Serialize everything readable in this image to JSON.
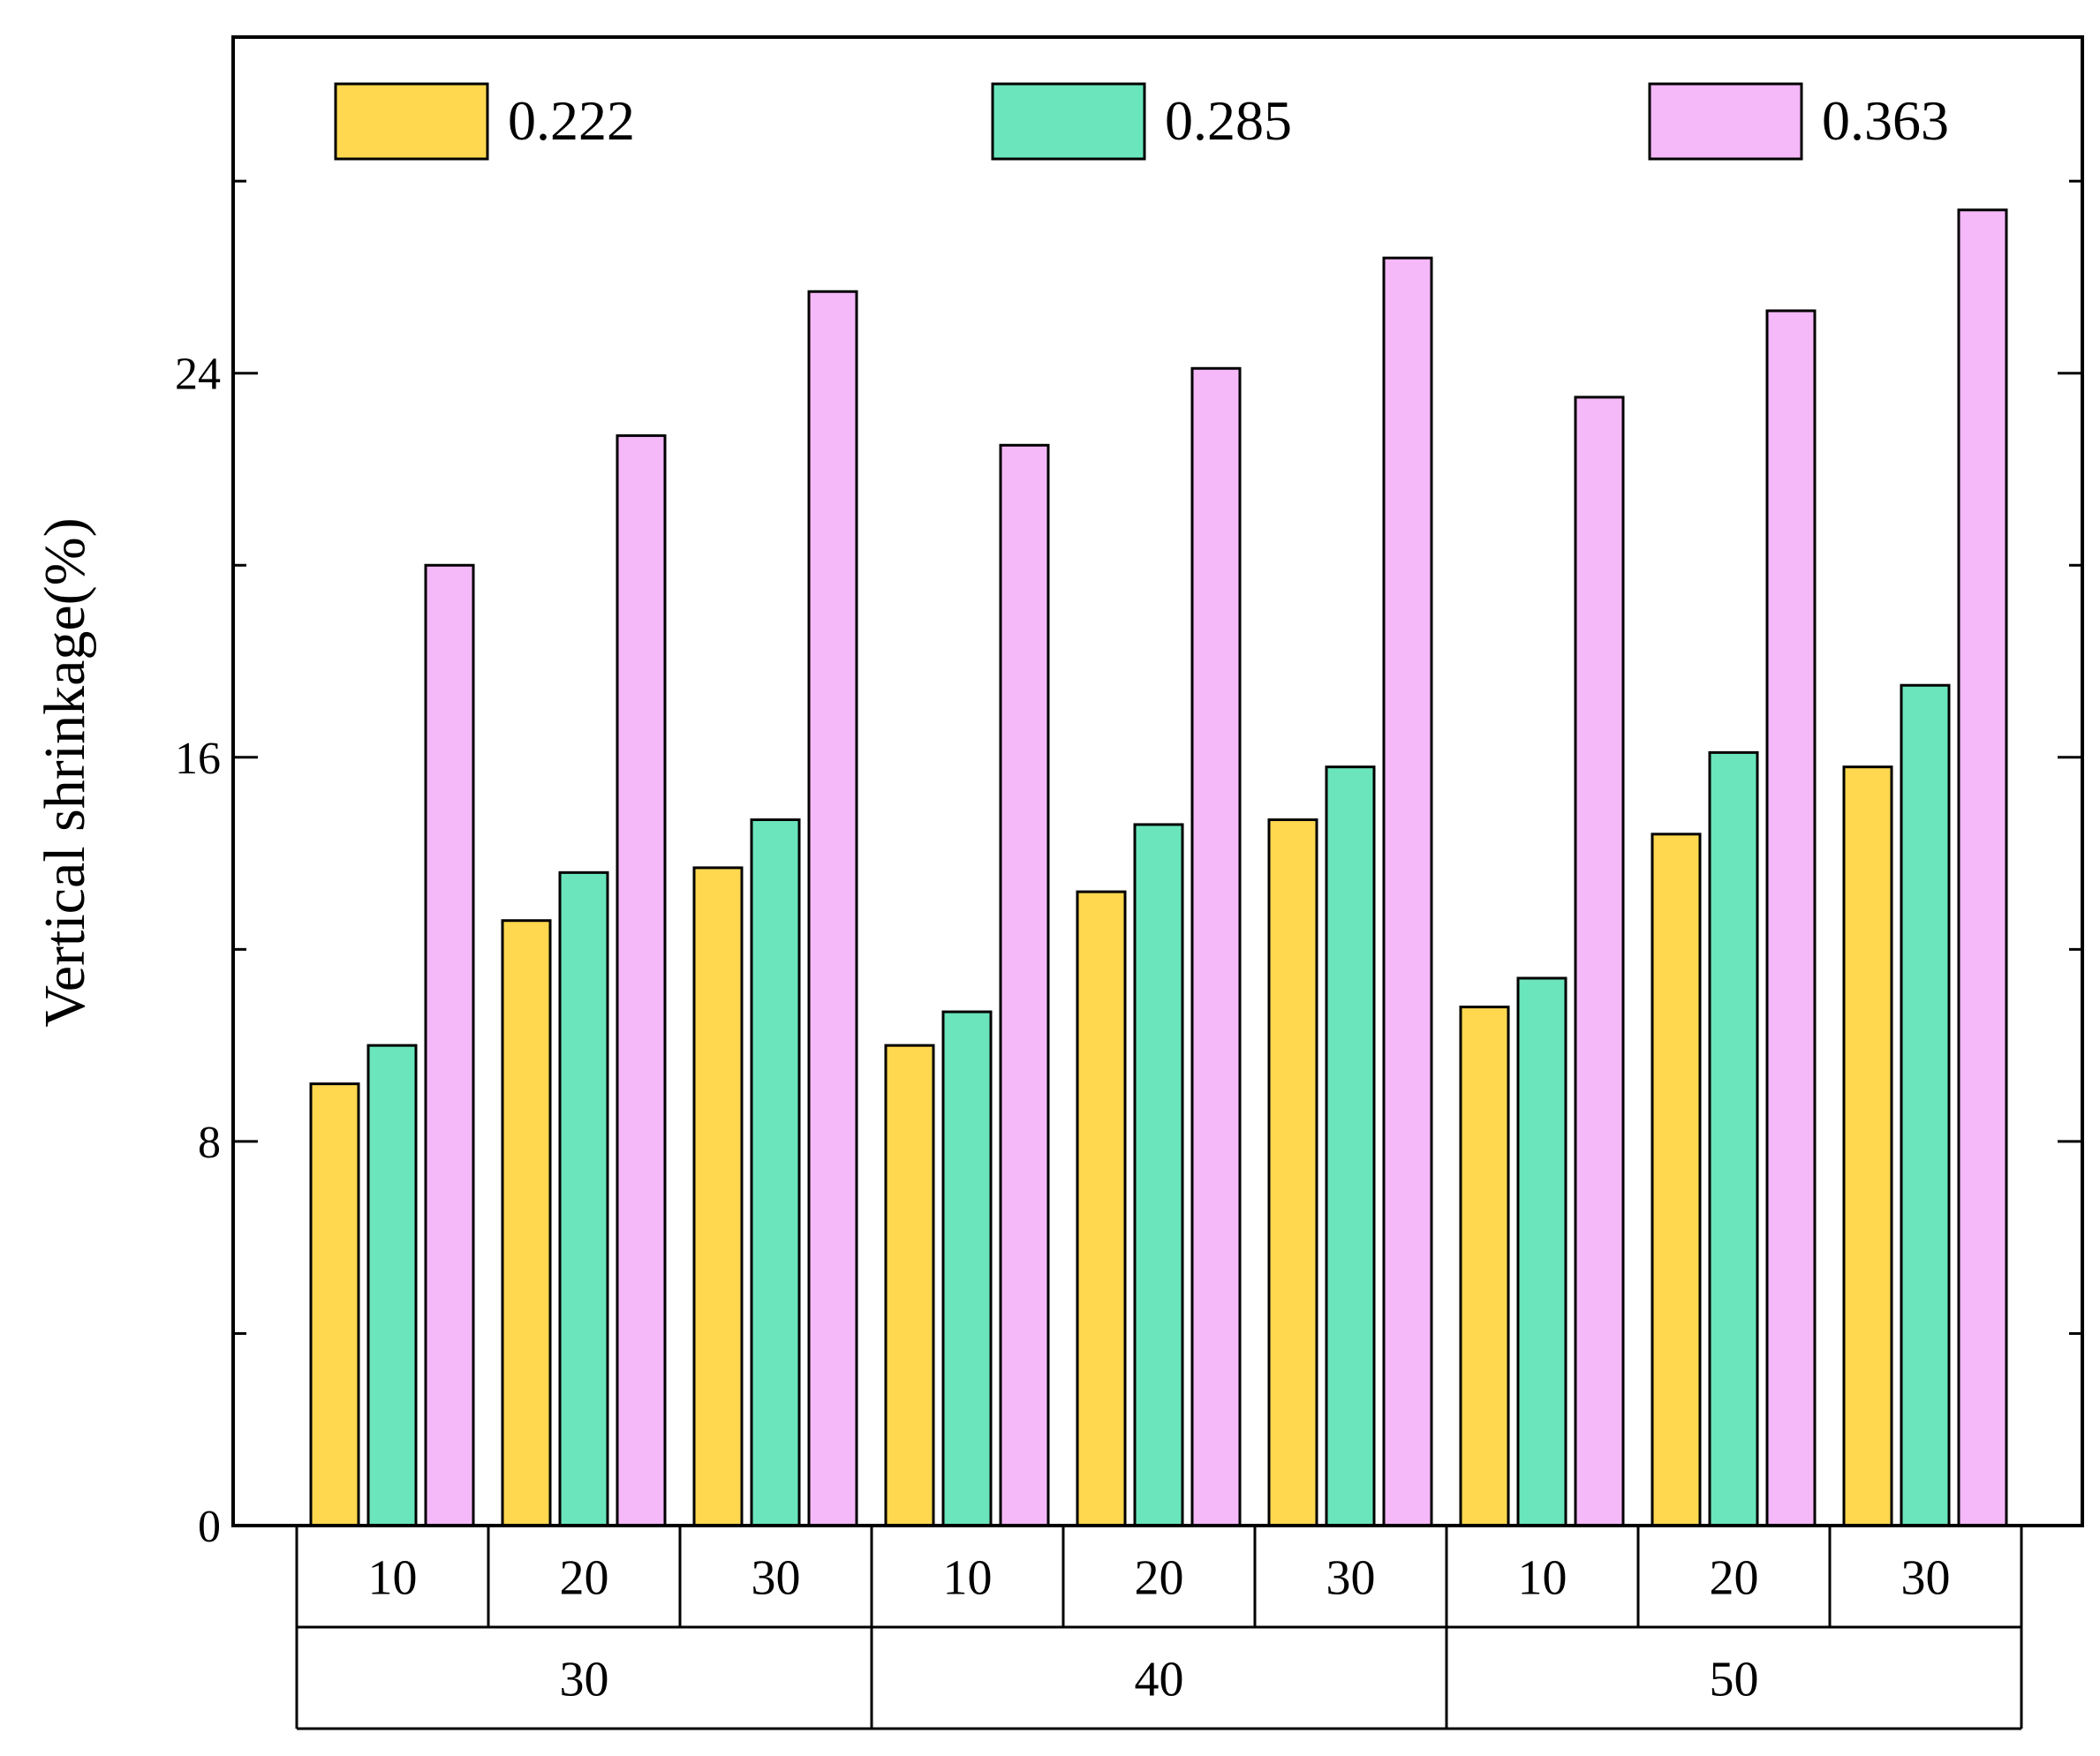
{
  "chart_data": {
    "type": "bar",
    "title": "",
    "xlabel": "",
    "ylabel": "Vertical shrinkage(%)",
    "ylim": [
      0,
      31
    ],
    "yticks": [
      0,
      8,
      16,
      24
    ],
    "y_tick_labels": [
      "0",
      "8",
      "16",
      "24"
    ],
    "grid": false,
    "legend_position": "top",
    "outer_groups": [
      "30",
      "40",
      "50"
    ],
    "inner_categories": [
      "10",
      "20",
      "30"
    ],
    "categories": [
      "10",
      "20",
      "30",
      "10",
      "20",
      "30",
      "10",
      "20",
      "30"
    ],
    "series": [
      {
        "name": "0.222",
        "color": "#FFD84F",
        "values": [
          9.2,
          12.6,
          13.7,
          10.0,
          13.2,
          14.7,
          10.8,
          14.4,
          15.8
        ]
      },
      {
        "name": "0.285",
        "color": "#6BE6BC",
        "values": [
          10.0,
          13.6,
          14.7,
          10.7,
          14.6,
          15.8,
          11.4,
          16.1,
          17.5
        ]
      },
      {
        "name": "0.363",
        "color": "#F5B8F9",
        "values": [
          20.0,
          22.7,
          25.7,
          22.5,
          24.1,
          26.4,
          23.5,
          25.3,
          27.4
        ]
      }
    ]
  }
}
